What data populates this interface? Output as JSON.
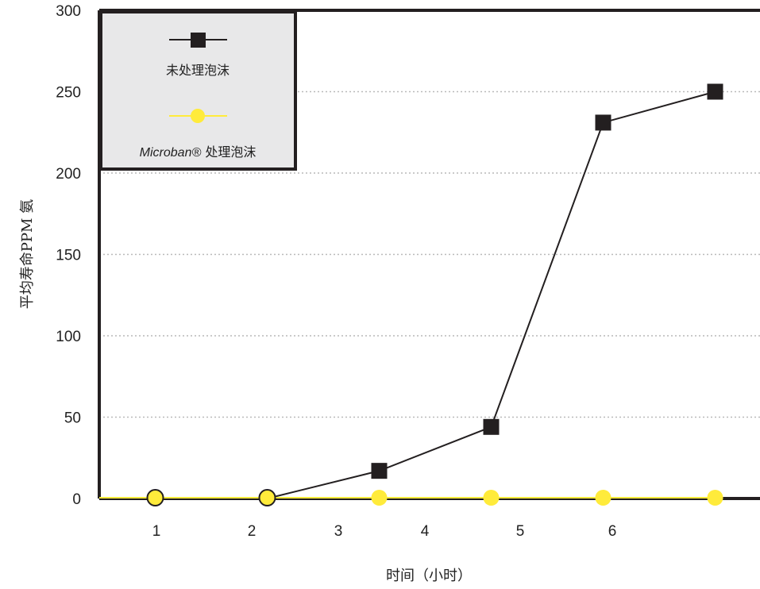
{
  "chart_data": {
    "type": "line",
    "ylabel": "平均寿命PPM 氨",
    "xlabel": "时间（小时）",
    "ylim": [
      0,
      300
    ],
    "yticks": [
      "0",
      "50",
      "100",
      "150",
      "200",
      "250",
      "300"
    ],
    "xtick_labels": [
      "1",
      "2",
      "3",
      "4",
      "5",
      "6"
    ],
    "grid": "horizontal dotted",
    "legend_position": "top-left",
    "series": [
      {
        "name": "未处理泡沫",
        "color": "#231f20",
        "marker": "square",
        "points": [
          {
            "x": 1,
            "y": 0
          },
          {
            "x": 2.2,
            "y": 0
          },
          {
            "x": 3.4,
            "y": 17
          },
          {
            "x": 4.6,
            "y": 44
          },
          {
            "x": 5.8,
            "y": 231
          },
          {
            "x": 7,
            "y": 250
          }
        ]
      },
      {
        "name": "Microban® 处理泡沫",
        "name_parts": {
          "brand": "Microban®",
          "rest": " 处理泡沫"
        },
        "color": "#ffeb3b",
        "marker": "circle",
        "points": [
          {
            "x": 1,
            "y": 0
          },
          {
            "x": 2.2,
            "y": 0
          },
          {
            "x": 3.4,
            "y": 0
          },
          {
            "x": 4.6,
            "y": 0
          },
          {
            "x": 5.8,
            "y": 0
          },
          {
            "x": 7,
            "y": 0
          }
        ]
      }
    ]
  }
}
